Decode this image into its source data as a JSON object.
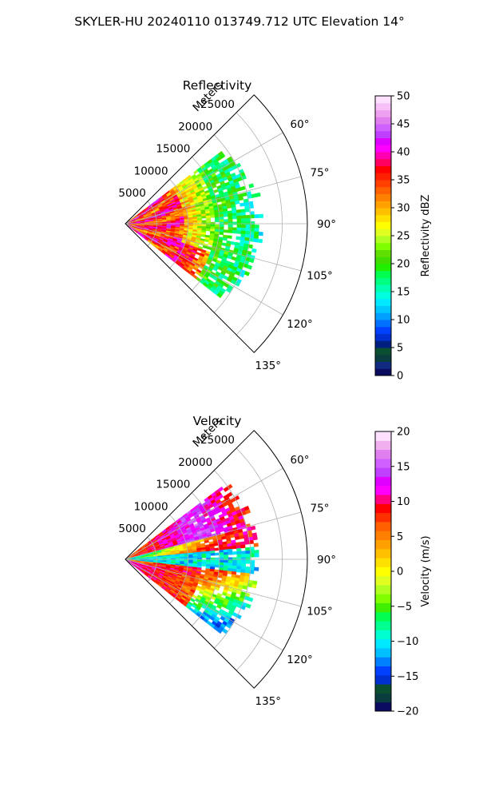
{
  "figure": {
    "title": "SKYLER-HU  20240110  013749.712 UTC Elevation 14°"
  },
  "chart_data": [
    {
      "type": "heatmap",
      "subtype": "polar-sector",
      "title": "Reflectivity",
      "radial_label": "Meters",
      "radial_ticks": [
        5000,
        10000,
        15000,
        20000,
        25000
      ],
      "radial_tick_labels": [
        "5000",
        "10000",
        "15000",
        "20000",
        "25000"
      ],
      "rmax": 29000,
      "angle_range_deg": [
        45,
        135
      ],
      "angle_ticks": [
        60,
        75,
        90,
        105,
        120,
        135
      ],
      "angle_tick_labels": [
        "60°",
        "75°",
        "90°",
        "105°",
        "120°",
        "135°"
      ],
      "grid": true,
      "colorbar": {
        "label": "Reflectivity dBZ",
        "vmin": 0,
        "vmax": 50,
        "ticks": [
          0,
          5,
          10,
          15,
          20,
          25,
          30,
          35,
          40,
          45,
          50
        ],
        "tick_labels": [
          "0",
          "5",
          "10",
          "15",
          "20",
          "25",
          "30",
          "35",
          "40",
          "45",
          "50"
        ],
        "colors": [
          "#0b0b60",
          "#102a80",
          "#0a3d3d",
          "#0a5030",
          "#00207f",
          "#0030d0",
          "#0040ff",
          "#0070ff",
          "#00a0ff",
          "#00c8ff",
          "#00e8ff",
          "#00ffe0",
          "#00ffb0",
          "#00ff80",
          "#00ff50",
          "#20f000",
          "#40dd00",
          "#60e000",
          "#80ff00",
          "#b0ff20",
          "#e0ff20",
          "#ffff00",
          "#ffe000",
          "#ffc000",
          "#ffa000",
          "#ff8000",
          "#ff6000",
          "#ff4000",
          "#ff2000",
          "#ff0000",
          "#ff0060",
          "#ff00b0",
          "#ff00ff",
          "#e000ff",
          "#c040ff",
          "#d060ff",
          "#e080f0",
          "#f0a0f0",
          "#f8c0f8",
          "#fde0fd"
        ]
      },
      "data_extent_deg": [
        53,
        127
      ],
      "data_extent_m": [
        0,
        21000
      ],
      "dominant_range_dbz": [
        15,
        42
      ],
      "near_range_dbz": [
        30,
        40
      ],
      "far_range_dbz": [
        15,
        23
      ]
    },
    {
      "type": "heatmap",
      "subtype": "polar-sector",
      "title": "Velocity",
      "radial_label": "Meters",
      "radial_ticks": [
        5000,
        10000,
        15000,
        20000,
        25000
      ],
      "radial_tick_labels": [
        "5000",
        "10000",
        "15000",
        "20000",
        "25000"
      ],
      "rmax": 29000,
      "angle_range_deg": [
        45,
        135
      ],
      "angle_ticks": [
        60,
        75,
        90,
        105,
        120,
        135
      ],
      "angle_tick_labels": [
        "60°",
        "75°",
        "90°",
        "105°",
        "120°",
        "135°"
      ],
      "grid": true,
      "colorbar": {
        "label": "Velocity (m/s)",
        "vmin": -20,
        "vmax": 20,
        "ticks": [
          -20,
          -15,
          -10,
          -5,
          0,
          5,
          10,
          15,
          20
        ],
        "tick_labels": [
          "−20",
          "−15",
          "−10",
          "−5",
          "0",
          "5",
          "10",
          "15",
          "20"
        ],
        "colors": [
          "#0b0b60",
          "#0a3d3d",
          "#0a5030",
          "#0030d0",
          "#0040ff",
          "#0080ff",
          "#00c0ff",
          "#00e8ff",
          "#00ffd0",
          "#00ff90",
          "#00ff50",
          "#40f000",
          "#80ff00",
          "#b0ff20",
          "#e0ff20",
          "#ffff00",
          "#ffe000",
          "#ffc000",
          "#ffa000",
          "#ff8000",
          "#ff6000",
          "#ff3000",
          "#ff0000",
          "#ff0080",
          "#ff00ff",
          "#e000ff",
          "#c040ff",
          "#d060ff",
          "#e080f0",
          "#f0b0f0",
          "#fde0fd"
        ]
      },
      "data_extent_deg": [
        53,
        127
      ],
      "data_extent_m": [
        0,
        21000
      ],
      "velocity_range_ms": [
        -12,
        13
      ]
    }
  ]
}
